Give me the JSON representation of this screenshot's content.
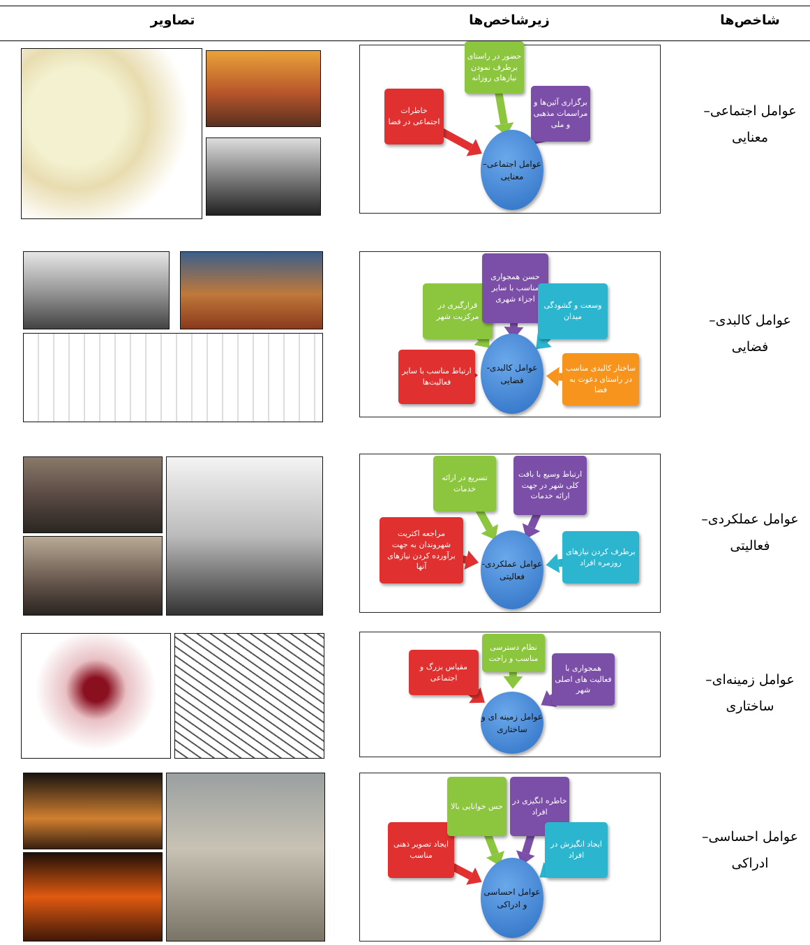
{
  "table": {
    "header": [
      "شاخص‌ها",
      "زیرشاخص‌ها",
      "تصاویر"
    ],
    "rows": [
      {
        "indicator": [
          "عوامل اجتماعی–",
          "معنایی"
        ],
        "diagram": {
          "center": "عوامل اجتماعی– معنایی",
          "boxes": [
            {
              "text": "خاطرات اجتماعی در فضا",
              "color": "#e0302f"
            },
            {
              "text": "حضور در راستای برطرف نمودن نیازهای روزانه",
              "color": "#8cc63f"
            },
            {
              "text": "برگزاری آئین‌ها و مراسمات مذهبی و ملی",
              "color": "#7b4fa8"
            }
          ]
        }
      },
      {
        "indicator": [
          "عوامل کالبدی–",
          "فضایی"
        ],
        "diagram": {
          "center": "عوامل کالبدی- فضایی",
          "boxes": [
            {
              "text": "ارتباط مناسب با سایر فعالیت‌ها",
              "color": "#e0302f"
            },
            {
              "text": "قرارگیری در مرکزیت شهر",
              "color": "#8cc63f"
            },
            {
              "text": "حسن همجواری مناسب با سایر اجزاء شهری",
              "color": "#7b4fa8"
            },
            {
              "text": "وسعت و گشودگی میدان",
              "color": "#2bb5cf"
            },
            {
              "text": "ساختار کالبدی مناسب در راستای دعوت به فضا",
              "color": "#f7941d"
            }
          ]
        }
      },
      {
        "indicator": [
          "عوامل عملکردی–",
          "فعالیتی"
        ],
        "diagram": {
          "center": "عوامل عملکردی- فعالیتی",
          "boxes": [
            {
              "text": "مراجعه اکثریت شهروندان به جهت برآورده کردن نیازهای آنها",
              "color": "#e0302f"
            },
            {
              "text": "تسریع در ارائه خدمات",
              "color": "#8cc63f"
            },
            {
              "text": "ارتباط وسیع با بافت کلی شهر در جهت ارائه خدمات",
              "color": "#7b4fa8"
            },
            {
              "text": "برطرف کردن نیازهای روزمره افراد",
              "color": "#2bb5cf"
            }
          ]
        }
      },
      {
        "indicator": [
          "عوامل زمینه‌ای–",
          "ساختاری"
        ],
        "diagram": {
          "center": "عوامل زمینه ای و ساختاری",
          "boxes": [
            {
              "text": "مقیاس بزرگ و اجتماعی",
              "color": "#e0302f"
            },
            {
              "text": "نظام دسترسی مناسب و راحت",
              "color": "#8cc63f"
            },
            {
              "text": "همجواری با فعالیت های اصلی شهر",
              "color": "#7b4fa8"
            }
          ]
        }
      },
      {
        "indicator": [
          "عوامل احساسی–",
          "ادراکی"
        ],
        "diagram": {
          "center": "عوامل احساسی و ادراکی",
          "boxes": [
            {
              "text": "ایجاد تصویر ذهنی مناسب",
              "color": "#e0302f"
            },
            {
              "text": "حس خوانایی بالا",
              "color": "#8cc63f"
            },
            {
              "text": "خاطره انگیزی در افراد",
              "color": "#7b4fa8"
            },
            {
              "text": "ایجاد انگیزش در افراد",
              "color": "#2bb5cf"
            }
          ]
        }
      }
    ]
  }
}
